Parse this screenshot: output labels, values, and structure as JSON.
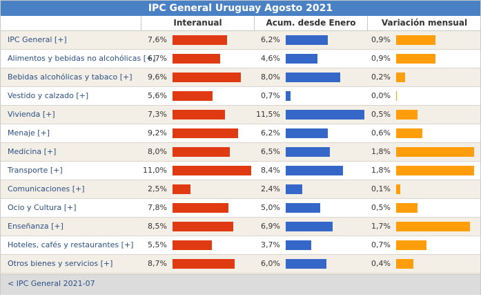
{
  "chart_data": {
    "type": "bar",
    "title": "IPC General Uruguay Agosto 2021",
    "columns": [
      "Interanual",
      "Acum. desde Enero",
      "Variación mensual"
    ],
    "categories": [
      "IPC General [+]",
      "Alimentos y bebidas no alcohólicas [+]",
      "Bebidas alcohólicas y tabaco [+]",
      "Vestido y calzado [+]",
      "Vivienda [+]",
      "Menaje [+]",
      "Medicina [+]",
      "Transporte [+]",
      "Comunicaciones [+]",
      "Ocio y Cultura [+]",
      "Enseñanza [+]",
      "Hoteles, cafés y restaurantes [+]",
      "Otros bienes y servicios [+]"
    ],
    "series": [
      {
        "name": "Interanual",
        "color": "#e03a12",
        "max": 11.0,
        "labels": [
          "7,6%",
          "6,7%",
          "9,6%",
          "5,6%",
          "7,3%",
          "9,2%",
          "8,0%",
          "11,0%",
          "2,5%",
          "7,8%",
          "8,5%",
          "5,5%",
          "8,7%"
        ],
        "values": [
          7.6,
          6.7,
          9.6,
          5.6,
          7.3,
          9.2,
          8.0,
          11.0,
          2.5,
          7.8,
          8.5,
          5.5,
          8.7
        ]
      },
      {
        "name": "Acum. desde Enero",
        "color": "#3467c8",
        "max": 11.5,
        "labels": [
          "6,2%",
          "4,6%",
          "8,0%",
          "0,7%",
          "11,5%",
          "6,2%",
          "6,5%",
          "8,4%",
          "2,4%",
          "5,0%",
          "6,9%",
          "3,7%",
          "6,0%"
        ],
        "values": [
          6.2,
          4.6,
          8.0,
          0.7,
          11.5,
          6.2,
          6.5,
          8.4,
          2.4,
          5.0,
          6.9,
          3.7,
          6.0
        ]
      },
      {
        "name": "Variación mensual",
        "color": "#ff9e0a",
        "max": 1.8,
        "labels": [
          "0,9%",
          "0,9%",
          "0,2%",
          "0,0%",
          "0,5%",
          "0,6%",
          "1,8%",
          "1,8%",
          "0,1%",
          "0,5%",
          "1,7%",
          "0,7%",
          "0,4%"
        ],
        "values": [
          0.9,
          0.9,
          0.2,
          0.0,
          0.5,
          0.6,
          1.8,
          1.8,
          0.1,
          0.5,
          1.7,
          0.7,
          0.4
        ]
      }
    ]
  },
  "footer": {
    "prev_link": "< IPC General 2021-07"
  }
}
